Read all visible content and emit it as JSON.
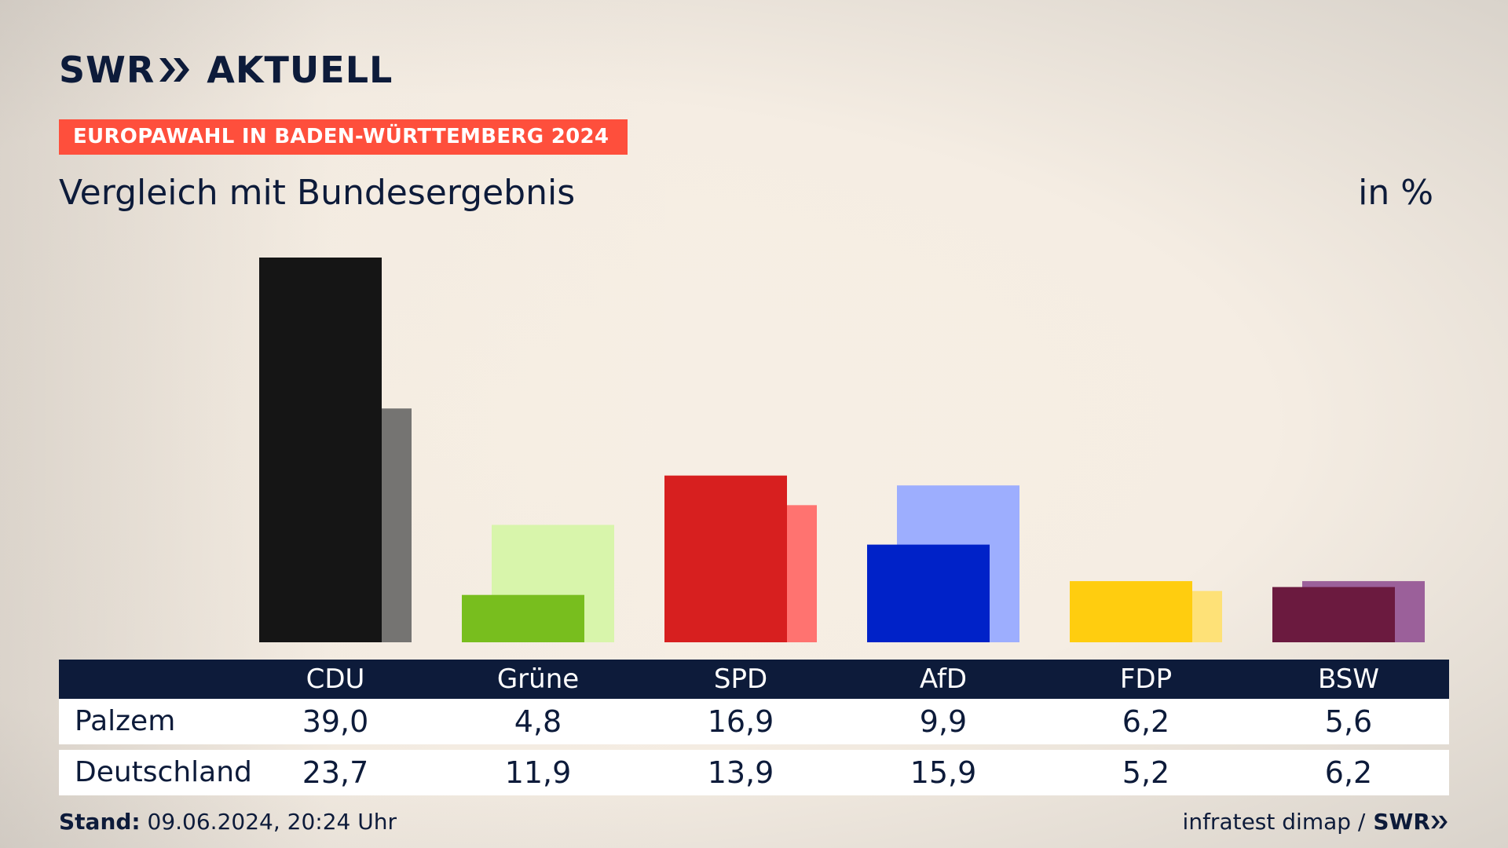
{
  "header": {
    "logo_text_left": "SWR",
    "logo_text_right": "AKTUELL",
    "banner": "EUROPAWAHL IN BADEN-WÜRTTEMBERG 2024",
    "subtitle": "Vergleich mit Bundesergebnis",
    "unit": "in %"
  },
  "footer": {
    "stand_label": "Stand:",
    "stand_value": " 09.06.2024, 20:24 Uhr",
    "source": "infratest dimap /",
    "source_logo": "SWR"
  },
  "colors": {
    "banner": "#fe4f3c",
    "navy": "#0d1b3a"
  },
  "chart_data": {
    "type": "bar",
    "categories": [
      "CDU",
      "Grüne",
      "SPD",
      "AfD",
      "FDP",
      "BSW"
    ],
    "series": [
      {
        "name": "Palzem",
        "values": [
          39.0,
          4.8,
          16.9,
          9.9,
          6.2,
          5.6
        ],
        "display": [
          "39,0",
          "4,8",
          "16,9",
          "9,9",
          "6,2",
          "5,6"
        ],
        "colors": [
          "#151515",
          "#78be1e",
          "#d71f1f",
          "#0022c8",
          "#ffcd0f",
          "#6b1a3f"
        ]
      },
      {
        "name": "Deutschland",
        "values": [
          23.7,
          11.9,
          13.9,
          15.9,
          5.2,
          6.2
        ],
        "display": [
          "23,7",
          "11,9",
          "13,9",
          "15,9",
          "5,2",
          "6,2"
        ],
        "colors": [
          "#757472",
          "#d8f5ab",
          "#ff7370",
          "#9daefe",
          "#fee177",
          "#9b609a"
        ]
      }
    ],
    "ylim": [
      0,
      39.0
    ],
    "grid": false,
    "legend": "table-below"
  }
}
